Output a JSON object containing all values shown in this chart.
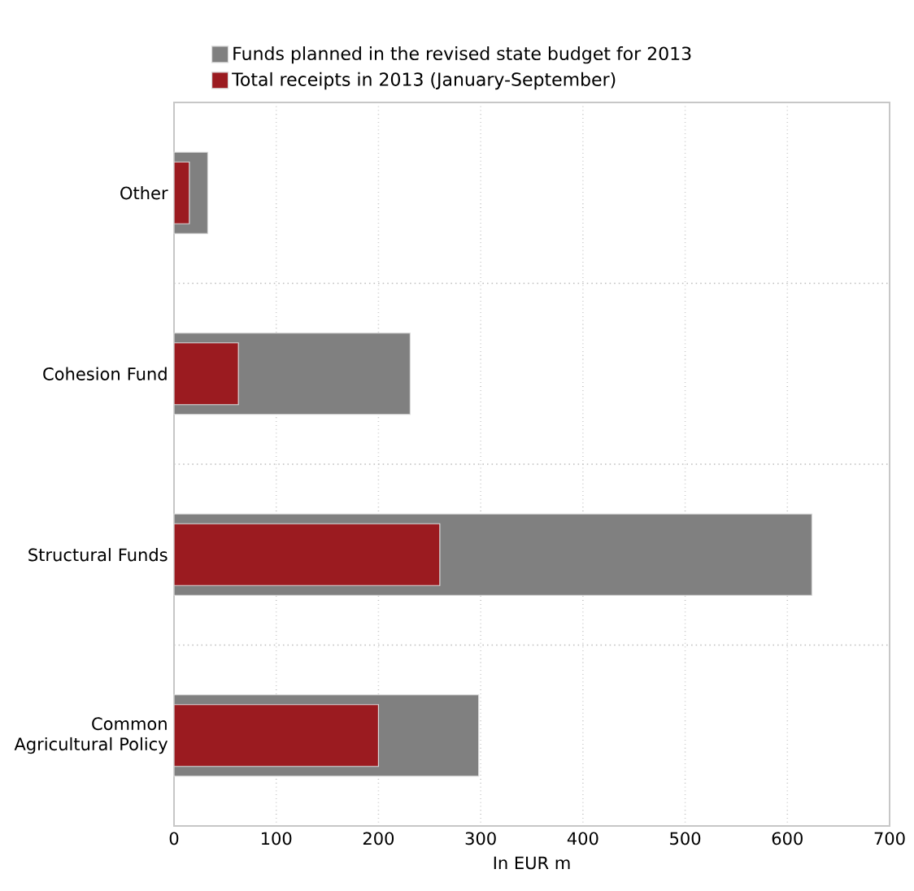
{
  "chart_data": {
    "type": "bar",
    "orientation": "horizontal",
    "xlabel": "In EUR m",
    "categories": [
      "Other",
      "Cohesion Fund",
      "Structural Funds",
      "Common Agricultural Policy"
    ],
    "series": [
      {
        "name": "Funds planned in the revised state budget for 2013",
        "color": "#808080",
        "values": [
          33,
          231,
          624,
          298
        ]
      },
      {
        "name": "Total receipts in 2013 (January-September)",
        "color": "#9b1b20",
        "values": [
          15,
          63,
          260,
          200
        ]
      }
    ],
    "xlim": [
      0,
      700
    ],
    "xticks": [
      0,
      100,
      200,
      300,
      400,
      500,
      600,
      700
    ],
    "grid": true,
    "legend": "top"
  }
}
